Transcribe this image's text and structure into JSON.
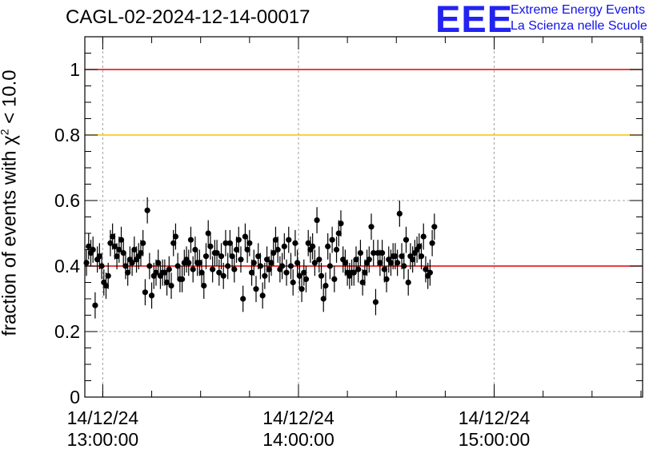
{
  "title": "CAGL-02-2024-12-14-00017",
  "logo": {
    "mark": "EEE",
    "line1": "Extreme Energy Events",
    "line2": "La Scienza nelle Scuole"
  },
  "colors": {
    "points": "#000000",
    "line_red": "#e00000",
    "line_yellow": "#ffc000",
    "grid": "#a0a0a0"
  },
  "chart_data": {
    "type": "scatter",
    "title": "CAGL-02-2024-12-14-00017",
    "ylabel_prefix": "fraction of events with ",
    "ylabel_symbol": "χ",
    "ylabel_sup": "2",
    "ylabel_suffix": " < 10.0",
    "ylim": [
      0,
      1.1
    ],
    "xlim": [
      "2024-12-14 12:54:30",
      "2024-12-14 15:45:30"
    ],
    "y_ticks": [
      {
        "value": 0,
        "label": "0"
      },
      {
        "value": 0.2,
        "label": "0.2"
      },
      {
        "value": 0.4,
        "label": "0.4"
      },
      {
        "value": 0.6,
        "label": "0.6"
      },
      {
        "value": 0.8,
        "label": "0.8"
      },
      {
        "value": 1,
        "label": "1"
      }
    ],
    "x_ticks": [
      {
        "time": "2024-12-14 13:00:00",
        "date_label": "14/12/24",
        "time_label": "13:00:00"
      },
      {
        "time": "2024-12-14 14:00:00",
        "date_label": "14/12/24",
        "time_label": "14:00:00"
      },
      {
        "time": "2024-12-14 15:00:00",
        "date_label": "14/12/24",
        "time_label": "15:00:00"
      }
    ],
    "grid": true,
    "reference_lines": [
      {
        "y": 1.0,
        "color": "#e00000"
      },
      {
        "y": 0.8,
        "color": "#ffc000"
      },
      {
        "y": 0.4,
        "color": "#e00000"
      }
    ],
    "error_half_width": 0.04,
    "series": [
      {
        "x_start": "2024-12-14 12:55:00",
        "x_step_seconds": 40,
        "values": [
          0.41,
          0.46,
          0.44,
          0.45,
          0.28,
          0.42,
          0.43,
          0.4,
          0.35,
          0.34,
          0.37,
          0.47,
          0.49,
          0.46,
          0.43,
          0.45,
          0.48,
          0.44,
          0.4,
          0.38,
          0.42,
          0.41,
          0.45,
          0.42,
          0.43,
          0.44,
          0.47,
          0.32,
          0.57,
          0.4,
          0.31,
          0.37,
          0.38,
          0.41,
          0.37,
          0.38,
          0.38,
          0.35,
          0.39,
          0.34,
          0.47,
          0.49,
          0.4,
          0.36,
          0.36,
          0.41,
          0.42,
          0.41,
          0.48,
          0.39,
          0.45,
          0.41,
          0.41,
          0.38,
          0.34,
          0.43,
          0.5,
          0.46,
          0.39,
          0.44,
          0.44,
          0.38,
          0.43,
          0.37,
          0.47,
          0.4,
          0.47,
          0.43,
          0.39,
          0.45,
          0.48,
          0.42,
          0.3,
          0.49,
          0.45,
          0.47,
          0.38,
          0.41,
          0.33,
          0.43,
          0.4,
          0.31,
          0.37,
          0.42,
          0.39,
          0.41,
          0.44,
          0.48,
          0.45,
          0.39,
          0.4,
          0.46,
          0.38,
          0.48,
          0.4,
          0.35,
          0.47,
          0.41,
          0.37,
          0.33,
          0.38,
          0.36,
          0.47,
          0.45,
          0.46,
          0.41,
          0.54,
          0.42,
          0.37,
          0.3,
          0.34,
          0.46,
          0.4,
          0.48,
          0.36,
          0.45,
          0.5,
          0.53,
          0.42,
          0.41,
          0.38,
          0.37,
          0.38,
          0.38,
          0.42,
          0.39,
          0.44,
          0.35,
          0.38,
          0.41,
          0.42,
          0.52,
          0.44,
          0.29,
          0.44,
          0.41,
          0.44,
          0.39,
          0.36,
          0.42,
          0.41,
          0.43,
          0.43,
          0.41,
          0.56,
          0.43,
          0.4,
          0.48,
          0.35,
          0.43,
          0.42,
          0.44,
          0.45,
          0.46,
          0.43,
          0.49,
          0.39,
          0.37,
          0.38,
          0.47,
          0.52
        ]
      }
    ]
  }
}
